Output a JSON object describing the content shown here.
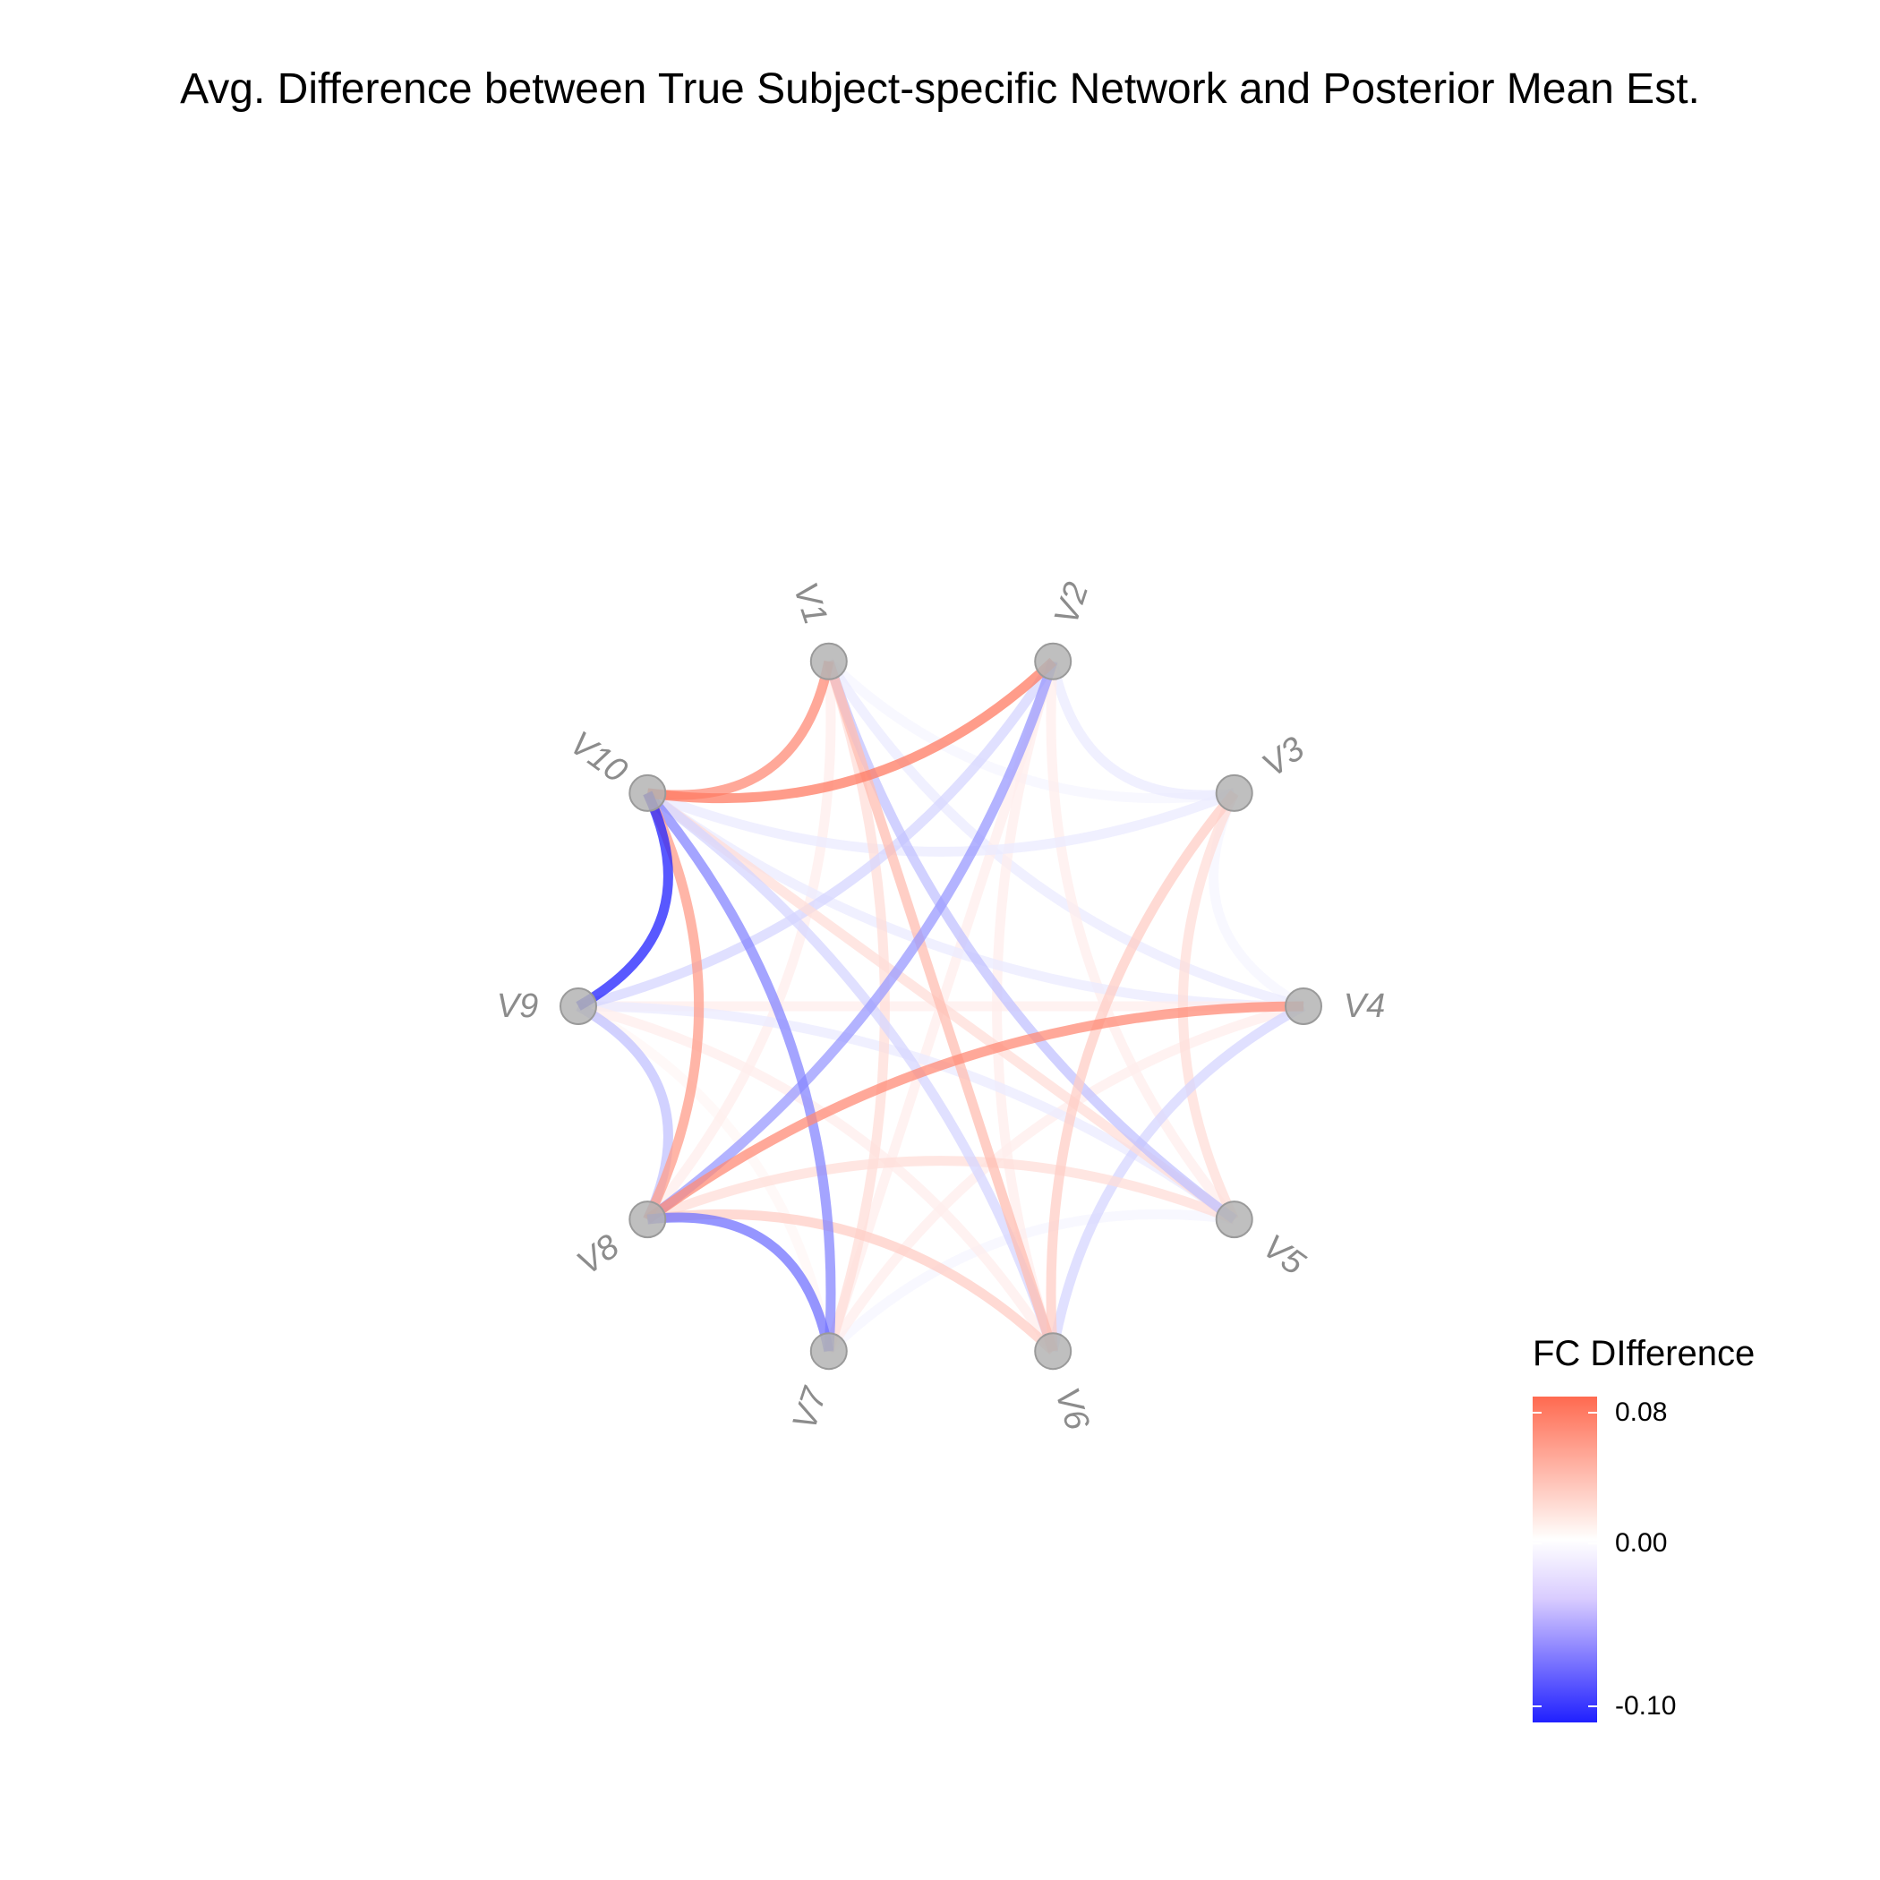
{
  "title": "Avg. Difference between True Subject-specific Network and Posterior Mean Est.",
  "nodes": [
    {
      "id": "V1",
      "label": "V1"
    },
    {
      "id": "V2",
      "label": "V2"
    },
    {
      "id": "V3",
      "label": "V3"
    },
    {
      "id": "V4",
      "label": "V4"
    },
    {
      "id": "V5",
      "label": "V5"
    },
    {
      "id": "V6",
      "label": "V6"
    },
    {
      "id": "V7",
      "label": "V7"
    },
    {
      "id": "V8",
      "label": "V8"
    },
    {
      "id": "V9",
      "label": "V9"
    },
    {
      "id": "V10",
      "label": "V10"
    }
  ],
  "edges": [
    {
      "from": "V1",
      "to": "V10",
      "value": 0.07
    },
    {
      "from": "V1",
      "to": "V4",
      "value": -0.01
    },
    {
      "from": "V1",
      "to": "V5",
      "value": -0.03
    },
    {
      "from": "V1",
      "to": "V6",
      "value": 0.04
    },
    {
      "from": "V1",
      "to": "V7",
      "value": 0.02
    },
    {
      "from": "V1",
      "to": "V8",
      "value": 0.01
    },
    {
      "from": "V1",
      "to": "V3",
      "value": -0.005
    },
    {
      "from": "V2",
      "to": "V10",
      "value": 0.08
    },
    {
      "from": "V2",
      "to": "V8",
      "value": -0.05
    },
    {
      "from": "V2",
      "to": "V3",
      "value": -0.01
    },
    {
      "from": "V2",
      "to": "V5",
      "value": 0.01
    },
    {
      "from": "V2",
      "to": "V6",
      "value": 0.01
    },
    {
      "from": "V2",
      "to": "V9",
      "value": -0.02
    },
    {
      "from": "V2",
      "to": "V7",
      "value": 0.01
    },
    {
      "from": "V3",
      "to": "V6",
      "value": 0.03
    },
    {
      "from": "V3",
      "to": "V5",
      "value": 0.02
    },
    {
      "from": "V3",
      "to": "V10",
      "value": -0.01
    },
    {
      "from": "V3",
      "to": "V4",
      "value": -0.005
    },
    {
      "from": "V4",
      "to": "V8",
      "value": 0.07
    },
    {
      "from": "V4",
      "to": "V10",
      "value": -0.01
    },
    {
      "from": "V4",
      "to": "V6",
      "value": -0.02
    },
    {
      "from": "V4",
      "to": "V9",
      "value": 0.01
    },
    {
      "from": "V4",
      "to": "V7",
      "value": 0.01
    },
    {
      "from": "V5",
      "to": "V10",
      "value": 0.02
    },
    {
      "from": "V5",
      "to": "V9",
      "value": -0.01
    },
    {
      "from": "V5",
      "to": "V8",
      "value": 0.02
    },
    {
      "from": "V5",
      "to": "V7",
      "value": -0.005
    },
    {
      "from": "V6",
      "to": "V8",
      "value": 0.03
    },
    {
      "from": "V6",
      "to": "V10",
      "value": -0.02
    },
    {
      "from": "V6",
      "to": "V9",
      "value": 0.01
    },
    {
      "from": "V7",
      "to": "V10",
      "value": -0.06
    },
    {
      "from": "V7",
      "to": "V8",
      "value": -0.07
    },
    {
      "from": "V7",
      "to": "V9",
      "value": 0.005
    },
    {
      "from": "V8",
      "to": "V10",
      "value": 0.06
    },
    {
      "from": "V8",
      "to": "V9",
      "value": -0.03
    },
    {
      "from": "V9",
      "to": "V10",
      "value": -0.11
    }
  ],
  "legend": {
    "title": "FC DIfference",
    "ticks": [
      {
        "label": "0.08",
        "value": 0.08
      },
      {
        "label": "0.00",
        "value": 0.0
      },
      {
        "label": "-0.10",
        "value": -0.1
      }
    ],
    "range": [
      -0.11,
      0.09
    ],
    "colors": {
      "high": "#ff6a50",
      "mid": "#ffffff",
      "low": "#2020ff"
    }
  },
  "node_color": "#b4b4b4",
  "label_color": "#8c8c8c"
}
